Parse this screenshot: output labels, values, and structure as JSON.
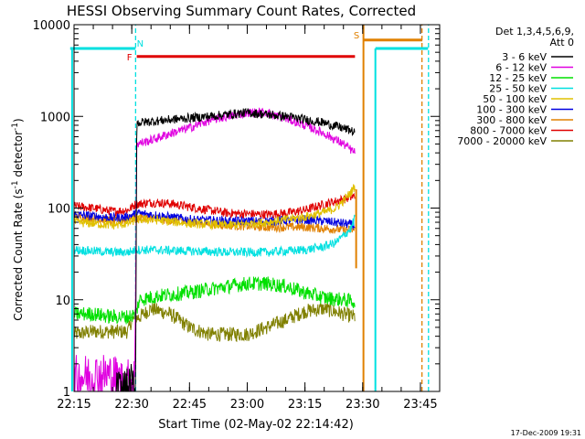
{
  "chart_data": {
    "type": "line",
    "title": "HESSI Observing Summary Count Rates, Corrected",
    "xlabel": "Start Time (02-May-02 22:14:42)",
    "ylabel": {
      "main": "Corrected Count Rate (s",
      "sup1": "-1",
      "mid": " detector",
      "sup2": "-1",
      "end": ")"
    },
    "yscale": "log",
    "ylim": [
      1,
      10000
    ],
    "xlim_minutes": [
      0,
      95
    ],
    "x_ticks": [
      {
        "m": 0,
        "label": "22:15"
      },
      {
        "m": 15,
        "label": "22:30"
      },
      {
        "m": 30,
        "label": "22:45"
      },
      {
        "m": 45,
        "label": "23:00"
      },
      {
        "m": 60,
        "label": "23:15"
      },
      {
        "m": 75,
        "label": "23:30"
      },
      {
        "m": 90,
        "label": "23:45"
      }
    ],
    "y_ticks": [
      {
        "v": 1,
        "label": "1"
      },
      {
        "v": 10,
        "label": "10"
      },
      {
        "v": 100,
        "label": "100"
      },
      {
        "v": 1000,
        "label": "1000"
      },
      {
        "v": 10000,
        "label": "10000"
      }
    ],
    "legend_header": [
      "Det 1,3,4,5,6,9,",
      "Att 0"
    ],
    "legend_position": "right",
    "footer_date": "17-Dec-2009 19:31",
    "series": [
      {
        "name": "3 - 6 keV",
        "color": "#000000",
        "points": [
          [
            11,
            1
          ],
          [
            14,
            1
          ],
          [
            15,
            1.2
          ],
          [
            16,
            1
          ],
          [
            16.3,
            850
          ],
          [
            25,
            920
          ],
          [
            35,
            1000
          ],
          [
            45,
            1100
          ],
          [
            55,
            1000
          ],
          [
            65,
            850
          ],
          [
            72,
            700
          ],
          [
            73,
            650
          ]
        ]
      },
      {
        "name": "6 - 12 keV",
        "color": "#e000e0",
        "points": [
          [
            0,
            1.4
          ],
          [
            5,
            1.5
          ],
          [
            10,
            1.5
          ],
          [
            12,
            1.3
          ],
          [
            14,
            1.3
          ],
          [
            15,
            1.4
          ],
          [
            15.8,
            1.5
          ],
          [
            16.3,
            500
          ],
          [
            20,
            550
          ],
          [
            25,
            650
          ],
          [
            30,
            750
          ],
          [
            35,
            900
          ],
          [
            40,
            1000
          ],
          [
            45,
            1100
          ],
          [
            50,
            1100
          ],
          [
            55,
            950
          ],
          [
            60,
            800
          ],
          [
            65,
            650
          ],
          [
            70,
            500
          ],
          [
            73,
            400
          ]
        ]
      },
      {
        "name": "12 - 25 keV",
        "color": "#00e000",
        "points": [
          [
            0,
            7
          ],
          [
            5,
            7
          ],
          [
            10,
            6.5
          ],
          [
            14,
            6.5
          ],
          [
            16,
            7
          ],
          [
            17,
            10
          ],
          [
            22,
            11
          ],
          [
            30,
            12
          ],
          [
            35,
            13
          ],
          [
            40,
            14
          ],
          [
            45,
            15
          ],
          [
            50,
            15
          ],
          [
            55,
            14
          ],
          [
            60,
            12
          ],
          [
            65,
            10.5
          ],
          [
            70,
            10
          ],
          [
            73,
            9.5
          ]
        ]
      },
      {
        "name": "25 - 50 keV",
        "color": "#00e0e0",
        "points": [
          [
            0,
            35
          ],
          [
            5,
            34
          ],
          [
            10,
            33
          ],
          [
            14,
            33
          ],
          [
            16,
            35
          ],
          [
            20,
            35
          ],
          [
            30,
            34
          ],
          [
            40,
            33
          ],
          [
            50,
            33
          ],
          [
            60,
            35
          ],
          [
            65,
            38
          ],
          [
            68,
            42
          ],
          [
            70,
            50
          ],
          [
            72,
            60
          ],
          [
            73,
            80
          ]
        ]
      },
      {
        "name": "50 - 100 keV",
        "color": "#e0c000",
        "points": [
          [
            0,
            70
          ],
          [
            5,
            68
          ],
          [
            10,
            65
          ],
          [
            14,
            68
          ],
          [
            16,
            75
          ],
          [
            20,
            75
          ],
          [
            30,
            68
          ],
          [
            40,
            65
          ],
          [
            50,
            70
          ],
          [
            60,
            80
          ],
          [
            65,
            90
          ],
          [
            68,
            100
          ],
          [
            70,
            120
          ],
          [
            72,
            150
          ],
          [
            73,
            175
          ]
        ]
      },
      {
        "name": "100 - 300 keV",
        "color": "#0000e0",
        "points": [
          [
            0,
            85
          ],
          [
            5,
            82
          ],
          [
            10,
            78
          ],
          [
            14,
            80
          ],
          [
            16,
            88
          ],
          [
            20,
            85
          ],
          [
            30,
            75
          ],
          [
            40,
            72
          ],
          [
            50,
            72
          ],
          [
            60,
            75
          ],
          [
            65,
            72
          ],
          [
            70,
            68
          ],
          [
            73,
            65
          ]
        ]
      },
      {
        "name": "300 - 800 keV",
        "color": "#e08000",
        "points": [
          [
            0,
            80
          ],
          [
            5,
            78
          ],
          [
            10,
            72
          ],
          [
            14,
            75
          ],
          [
            16,
            78
          ],
          [
            20,
            78
          ],
          [
            30,
            70
          ],
          [
            40,
            65
          ],
          [
            50,
            62
          ],
          [
            60,
            62
          ],
          [
            65,
            60
          ],
          [
            70,
            58
          ],
          [
            73,
            57
          ]
        ]
      },
      {
        "name": "800 - 7000 keV",
        "color": "#e00000",
        "points": [
          [
            0,
            105
          ],
          [
            5,
            100
          ],
          [
            10,
            92
          ],
          [
            14,
            95
          ],
          [
            16,
            110
          ],
          [
            20,
            115
          ],
          [
            25,
            112
          ],
          [
            30,
            103
          ],
          [
            40,
            88
          ],
          [
            50,
            85
          ],
          [
            55,
            88
          ],
          [
            60,
            95
          ],
          [
            65,
            110
          ],
          [
            70,
            125
          ],
          [
            73,
            135
          ]
        ]
      },
      {
        "name": "7000 - 20000 keV",
        "color": "#808000",
        "points": [
          [
            0,
            4.2
          ],
          [
            5,
            4.5
          ],
          [
            10,
            4.5
          ],
          [
            14,
            4.5
          ],
          [
            15,
            6
          ],
          [
            17,
            6.5
          ],
          [
            20,
            8
          ],
          [
            25,
            7
          ],
          [
            30,
            5
          ],
          [
            35,
            4.2
          ],
          [
            40,
            4.2
          ],
          [
            45,
            4.2
          ],
          [
            50,
            5
          ],
          [
            55,
            6
          ],
          [
            60,
            7.5
          ],
          [
            65,
            8
          ],
          [
            70,
            7
          ],
          [
            73,
            6.5
          ]
        ]
      }
    ],
    "flags": [
      {
        "label": "N",
        "color": "#00e0e0",
        "style": "solid",
        "m1": -1,
        "m2": 16,
        "y": 5500
      },
      {
        "label": "F",
        "color": "#e00000",
        "style": "solid",
        "m1": 16.3,
        "m2": 73,
        "y": 4500
      },
      {
        "label": "S",
        "color": "#e08000",
        "style": "solid",
        "m1": 75.3,
        "m2": 90.5,
        "y": 6800
      },
      {
        "label": "",
        "color": "#00e0e0",
        "style": "solid",
        "m1": 78.3,
        "m2": 92,
        "y": 5500
      }
    ],
    "vlines": [
      {
        "m": -0.5,
        "color": "#00e0e0",
        "style": "solid",
        "from": 1,
        "to": 5500
      },
      {
        "m": 16,
        "color": "#00e0e0",
        "style": "dashed",
        "from": 1,
        "to": 10000
      },
      {
        "m": 73.3,
        "color": "#e08000",
        "style": "solid",
        "from": 22,
        "to": 160
      },
      {
        "m": 75.2,
        "color": "#e08000",
        "style": "solid",
        "from": 1,
        "to": 10000
      },
      {
        "m": 78.3,
        "color": "#00e0e0",
        "style": "solid",
        "from": 1,
        "to": 5500
      },
      {
        "m": 90.4,
        "color": "#e08000",
        "style": "dashed",
        "from": 1,
        "to": 10000
      },
      {
        "m": 92.1,
        "color": "#00e0e0",
        "style": "dashed",
        "from": 1,
        "to": 10000
      }
    ]
  }
}
